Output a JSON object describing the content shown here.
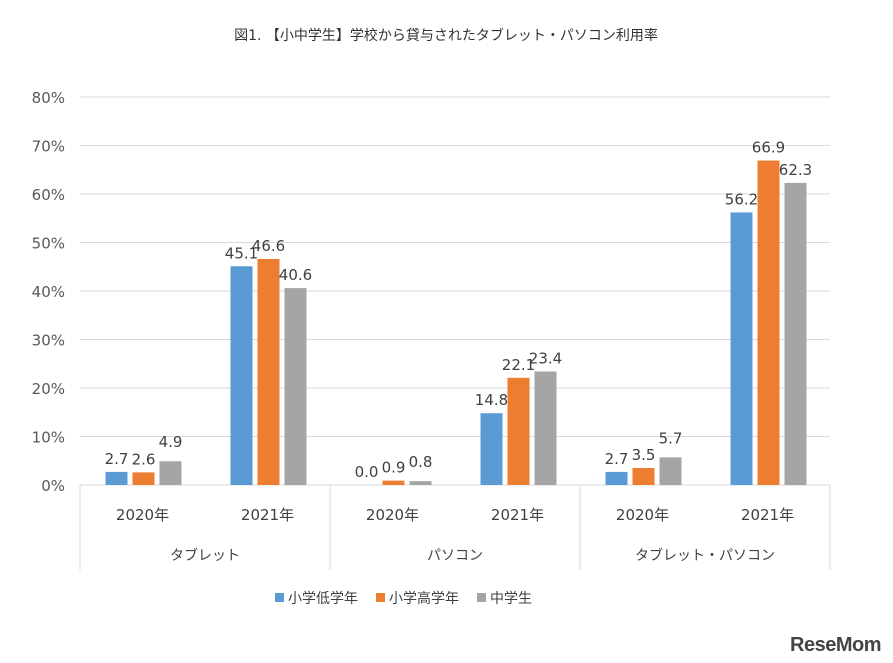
{
  "chart_data": {
    "type": "bar",
    "title": "図1. 【小中学生】学校から貸与されたタブレット・パソコン利用率",
    "groups": [
      "タブレット",
      "パソコン",
      "タブレット・パソコン"
    ],
    "years": [
      "2020年",
      "2021年"
    ],
    "yticks": [
      "0%",
      "10%",
      "20%",
      "30%",
      "40%",
      "50%",
      "60%",
      "70%",
      "80%"
    ],
    "ylim": [
      0,
      80
    ],
    "grid": true,
    "legend_position": "bottom",
    "series": [
      {
        "name": "小学低学年",
        "color": "#5b9bd5",
        "values": [
          2.7,
          45.1,
          0.0,
          14.8,
          2.7,
          56.2
        ],
        "labels": [
          "2.7",
          "45.1",
          "0.0",
          "14.8",
          "2.7",
          "56.2"
        ]
      },
      {
        "name": "小学高学年",
        "color": "#ed7d31",
        "values": [
          2.6,
          46.6,
          0.9,
          22.1,
          3.5,
          66.9
        ],
        "labels": [
          "2.6",
          "46.6",
          "0.9",
          "22.1",
          "3.5",
          "66.9"
        ]
      },
      {
        "name": "中学生",
        "color": "#a5a5a5",
        "values": [
          4.9,
          40.6,
          0.8,
          23.4,
          5.7,
          62.3
        ],
        "labels": [
          "4.9",
          "40.6",
          "0.8",
          "23.4",
          "5.7",
          "62.3"
        ]
      }
    ]
  },
  "logo": "ReseMom"
}
